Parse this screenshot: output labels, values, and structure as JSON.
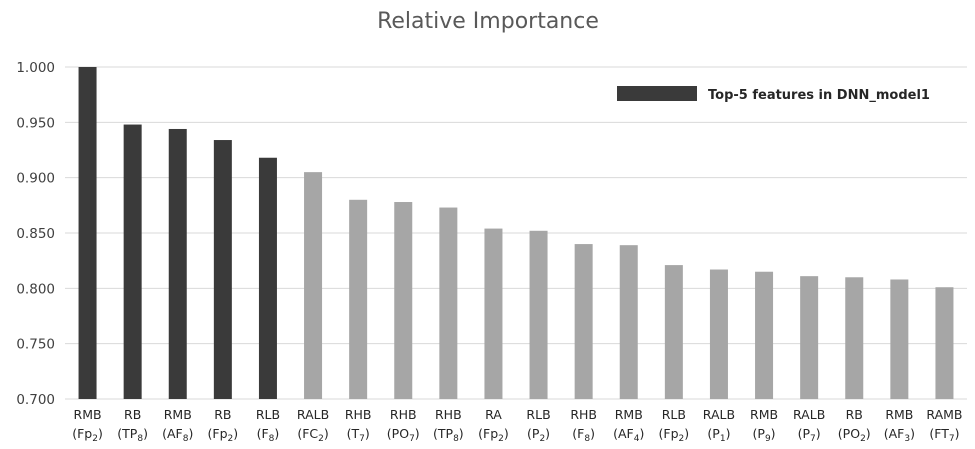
{
  "chart_data": {
    "type": "bar",
    "title": "Relative Importance",
    "xlabel": "",
    "ylabel": "",
    "ylim": [
      0.7,
      1.0
    ],
    "yticks": [
      "0.700",
      "0.750",
      "0.800",
      "0.850",
      "0.900",
      "0.950",
      "1.000"
    ],
    "grid": true,
    "legend": {
      "label": "Top-5 features in DNN_model1",
      "position": "top-right"
    },
    "colors": {
      "top": "#3a3a3a",
      "other": "#a6a6a6"
    },
    "categories": [
      {
        "name": "RMB",
        "open": "(Fp",
        "sub": "2",
        "close": ")",
        "value": 1.0,
        "top": true
      },
      {
        "name": "RB",
        "open": "(TP",
        "sub": "8",
        "close": ")",
        "value": 0.948,
        "top": true
      },
      {
        "name": "RMB",
        "open": "(AF",
        "sub": "8",
        "close": ")",
        "value": 0.944,
        "top": true
      },
      {
        "name": "RB",
        "open": "(Fp",
        "sub": "2",
        "close": ")",
        "value": 0.934,
        "top": true
      },
      {
        "name": "RLB",
        "open": "(F",
        "sub": "8",
        "close": ")",
        "value": 0.918,
        "top": true
      },
      {
        "name": "RALB",
        "open": "(FC",
        "sub": "2",
        "close": ")",
        "value": 0.905,
        "top": false
      },
      {
        "name": "RHB",
        "open": "(T",
        "sub": "7",
        "close": ")",
        "value": 0.88,
        "top": false
      },
      {
        "name": "RHB",
        "open": "(PO",
        "sub": "7",
        "close": ")",
        "value": 0.878,
        "top": false
      },
      {
        "name": "RHB",
        "open": "(TP",
        "sub": "8",
        "close": ")",
        "value": 0.873,
        "top": false
      },
      {
        "name": "RA",
        "open": "(Fp",
        "sub": "2",
        "close": ")",
        "value": 0.854,
        "top": false
      },
      {
        "name": "RLB",
        "open": "(P",
        "sub": "2",
        "close": ")",
        "value": 0.852,
        "top": false
      },
      {
        "name": "RHB",
        "open": "(F",
        "sub": "8",
        "close": ")",
        "value": 0.84,
        "top": false
      },
      {
        "name": "RMB",
        "open": "(AF",
        "sub": "4",
        "close": ")",
        "value": 0.839,
        "top": false
      },
      {
        "name": "RLB",
        "open": "(Fp",
        "sub": "2",
        "close": ")",
        "value": 0.821,
        "top": false
      },
      {
        "name": "RALB",
        "open": "(P",
        "sub": "1",
        "close": ")",
        "value": 0.817,
        "top": false
      },
      {
        "name": "RMB",
        "open": "(P",
        "sub": "9",
        "close": ")",
        "value": 0.815,
        "top": false
      },
      {
        "name": "RALB",
        "open": "(P",
        "sub": "7",
        "close": ")",
        "value": 0.811,
        "top": false
      },
      {
        "name": "RB",
        "open": "(PO",
        "sub": "2",
        "close": ")",
        "value": 0.81,
        "top": false
      },
      {
        "name": "RMB",
        "open": "(AF",
        "sub": "3",
        "close": ")",
        "value": 0.808,
        "top": false
      },
      {
        "name": "RAMB",
        "open": "(FT",
        "sub": "7",
        "close": ")",
        "value": 0.801,
        "top": false
      }
    ]
  }
}
